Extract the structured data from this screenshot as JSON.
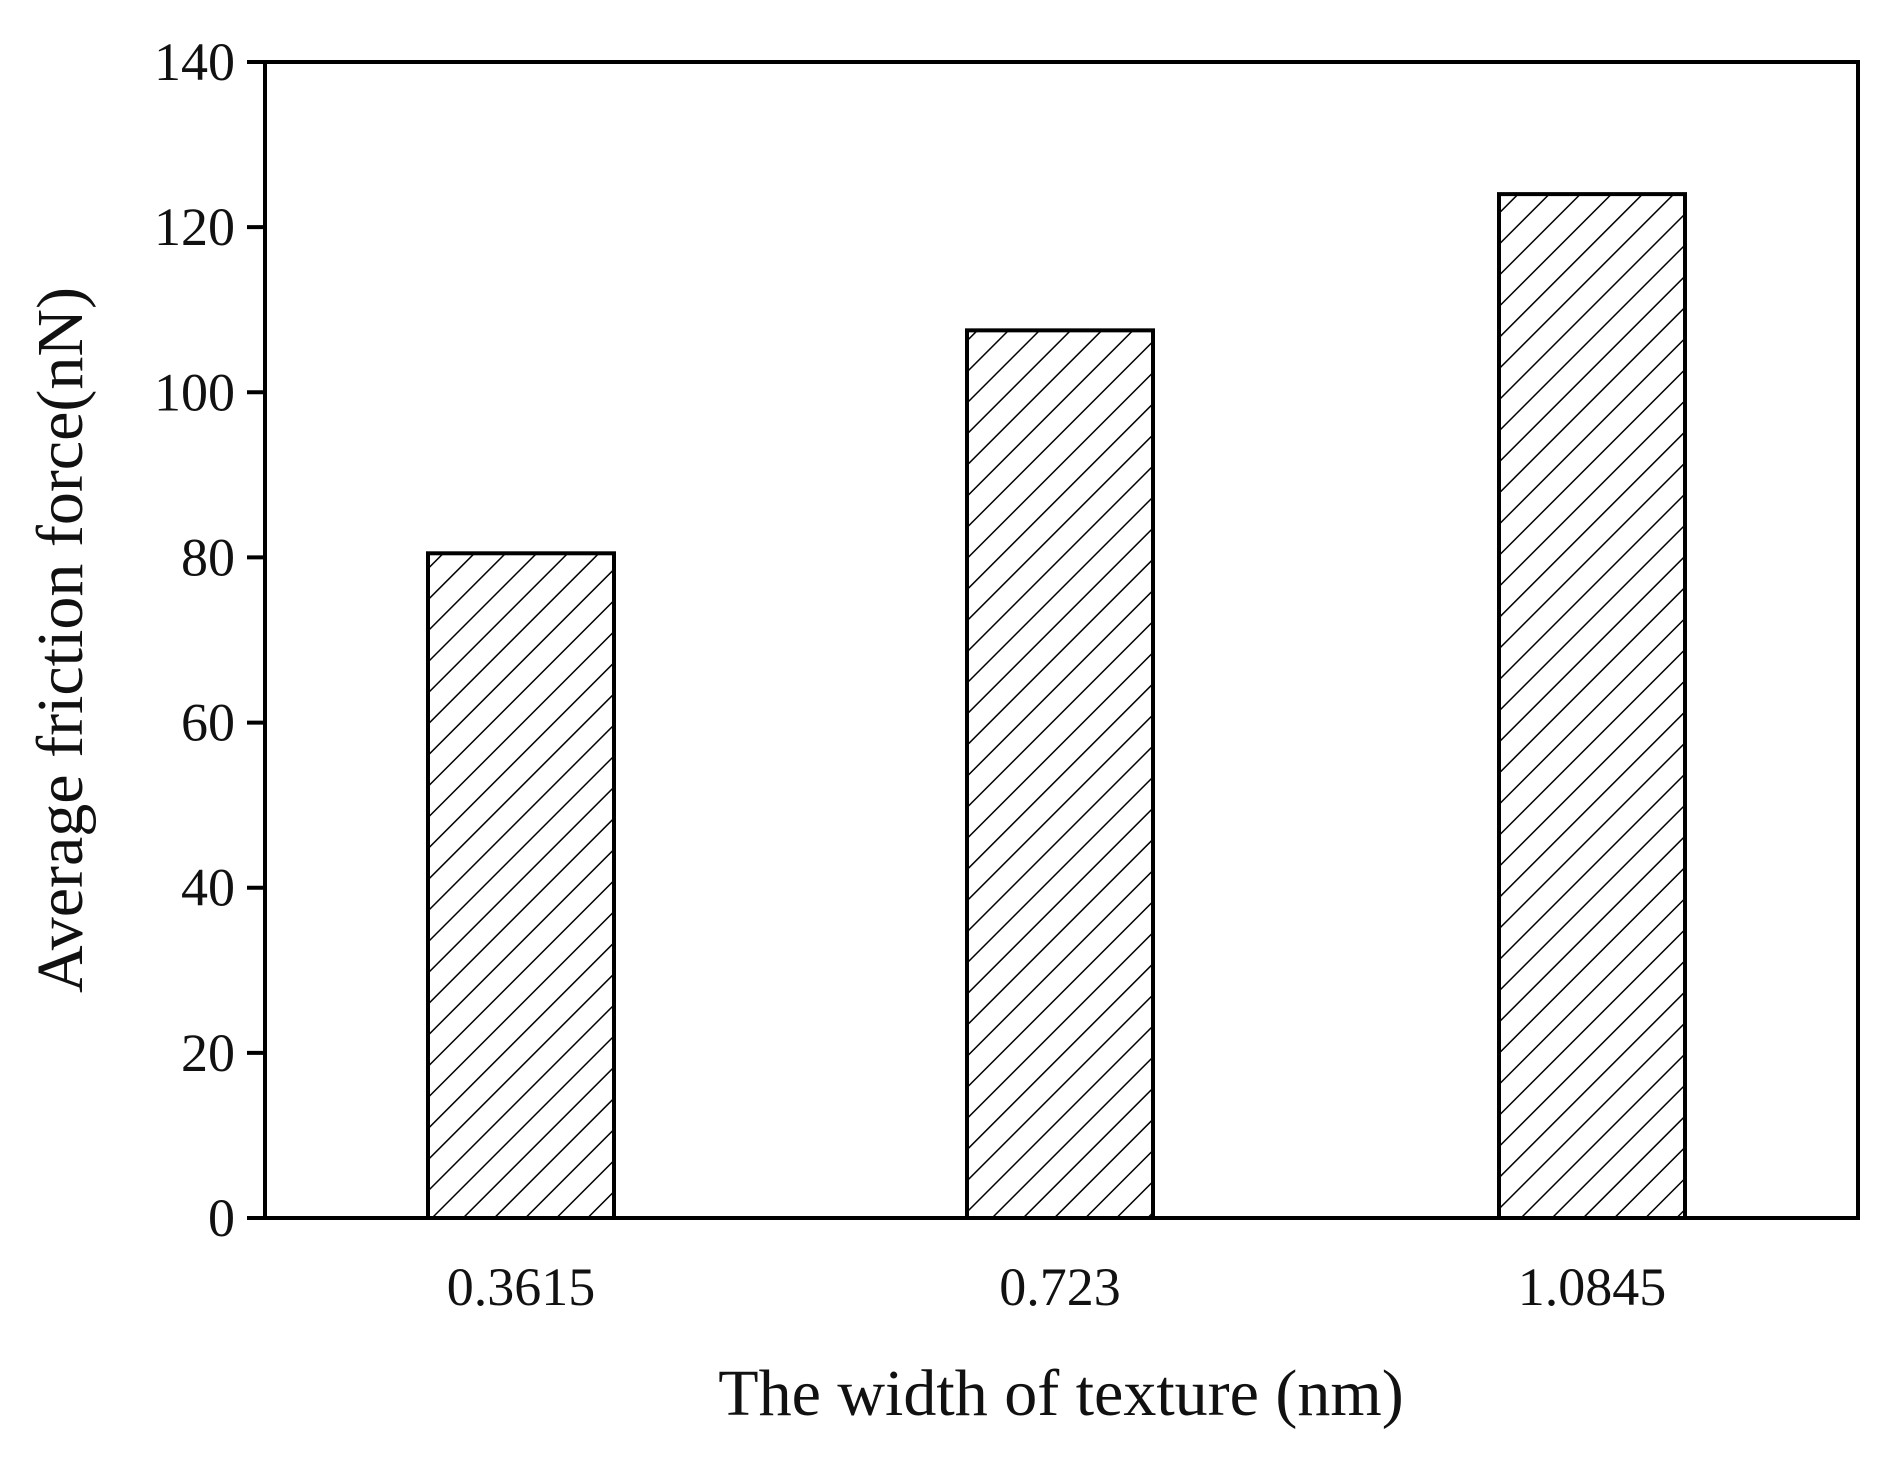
{
  "chart_data": {
    "type": "bar",
    "title": "",
    "xlabel": "The width of texture (nm)",
    "ylabel": "Average friction force(nN)",
    "categories": [
      "0.3615",
      "0.723",
      "1.0845"
    ],
    "values": [
      80.5,
      107.5,
      124
    ],
    "ylim": [
      0,
      140
    ],
    "yticks": [
      0,
      20,
      40,
      60,
      80,
      100,
      120,
      140
    ],
    "grid": false,
    "legend": "none",
    "bar_fill": "diagonal-hatch",
    "colors": {
      "bar_stroke": "#000000",
      "hatch": "#000000",
      "background": "#ffffff"
    }
  }
}
